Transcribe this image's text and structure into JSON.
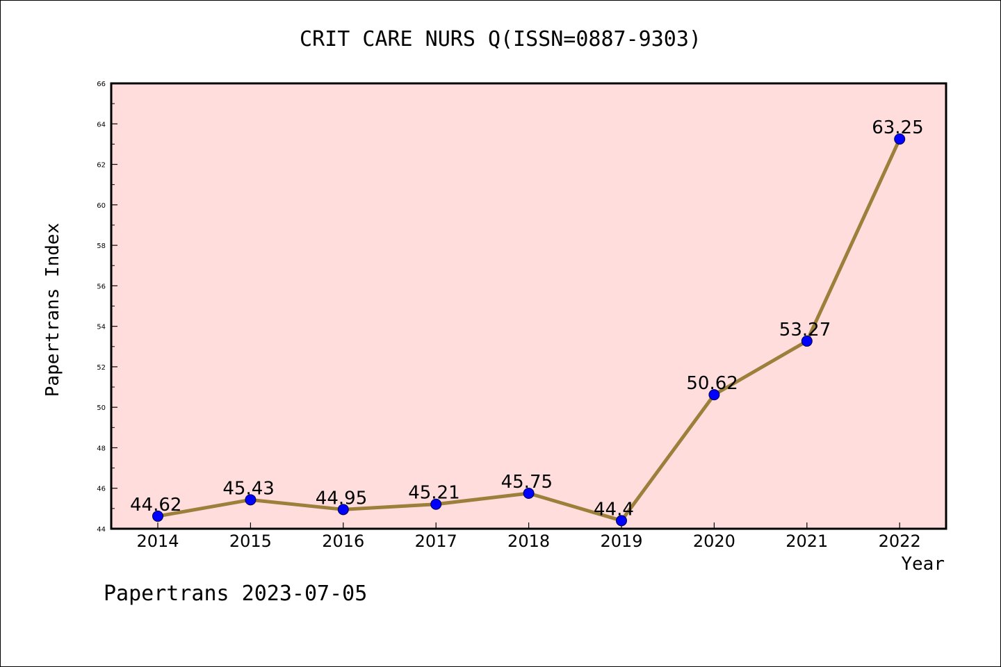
{
  "chart_data": {
    "type": "line",
    "title": "CRIT CARE NURS Q(ISSN=0887-9303)",
    "xlabel": "Year",
    "ylabel": "Papertrans Index",
    "x": [
      "2014",
      "2015",
      "2016",
      "2017",
      "2018",
      "2019",
      "2020",
      "2021",
      "2022"
    ],
    "values": [
      44.62,
      45.43,
      44.95,
      45.21,
      45.75,
      44.4,
      50.62,
      53.27,
      63.25
    ],
    "data_labels": [
      "44.62",
      "45.43",
      "44.95",
      "45.21",
      "45.75",
      "44.4",
      "50.62",
      "53.27",
      "63.25"
    ],
    "ylim": [
      44,
      66
    ],
    "yticks": [
      44,
      46,
      48,
      50,
      52,
      54,
      56,
      58,
      60,
      62,
      64,
      66
    ],
    "plot_background": "#FFDDDD",
    "line_color": "#9B7F3A",
    "marker_color": "#0000FF",
    "grid": false
  },
  "footer": {
    "text": "Papertrans 2023-07-05"
  }
}
